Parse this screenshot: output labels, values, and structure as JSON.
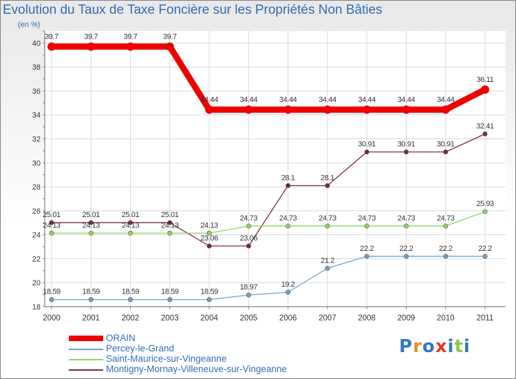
{
  "title": "Evolution du Taux de Taxe Foncière sur les Propriétés Non Bâties",
  "unit": "(en %)",
  "logo": "Proxiti",
  "chart_data": {
    "type": "line",
    "title": "Evolution du Taux de Taxe Foncière sur les Propriétés Non Bâties",
    "ylabel": "(en %)",
    "xlabel": "",
    "ylim": [
      18,
      41
    ],
    "y_ticks": [
      18,
      20,
      22,
      24,
      26,
      28,
      30,
      32,
      34,
      36,
      38,
      40
    ],
    "categories": [
      "2000",
      "2001",
      "2002",
      "2003",
      "2004",
      "2005",
      "2006",
      "2007",
      "2008",
      "2009",
      "2010",
      "2011"
    ],
    "series": [
      {
        "name": "ORAIN",
        "color": "#ee0000",
        "values": [
          39.7,
          39.7,
          39.7,
          39.7,
          34.44,
          34.44,
          34.44,
          34.44,
          34.44,
          34.44,
          34.44,
          36.11
        ],
        "labels": [
          "39.7",
          "39.7",
          "39.7",
          "39.7",
          "34.44",
          "34.44",
          "34.44",
          "34.44",
          "34.44",
          "34.44",
          "34.44",
          "36.11"
        ]
      },
      {
        "name": "Percey-le-Grand",
        "color": "#6ea0cc",
        "values": [
          18.59,
          18.59,
          18.59,
          18.59,
          18.59,
          18.97,
          19.2,
          21.2,
          22.2,
          22.2,
          22.2,
          22.2
        ],
        "labels": [
          "18.59",
          "18.59",
          "18.59",
          "18.59",
          "18.59",
          "18.97",
          "19.2",
          "21.2",
          "22.2",
          "22.2",
          "22.2",
          "22.2"
        ]
      },
      {
        "name": "Saint-Maurice-sur-Vingeanne",
        "color": "#8ed45a",
        "values": [
          24.13,
          24.13,
          24.13,
          24.13,
          24.13,
          24.73,
          24.73,
          24.73,
          24.73,
          24.73,
          24.73,
          25.93
        ],
        "labels": [
          "24.13",
          "24.13",
          "24.13",
          "24.13",
          "24.13",
          "24.73",
          "24.73",
          "24.73",
          "24.73",
          "24.73",
          "24.73",
          "25.93"
        ]
      },
      {
        "name": "Montigny-Mornay-Villeneuve-sur-Vingeanne",
        "color": "#7a2a30",
        "values": [
          25.01,
          25.01,
          25.01,
          25.01,
          23.06,
          23.06,
          28.1,
          28.1,
          30.91,
          30.91,
          30.91,
          32.41
        ],
        "labels": [
          "25.01",
          "25.01",
          "25.01",
          "25.01",
          "23.06",
          "23.06",
          "28.1",
          "28.1",
          "30.91",
          "30.91",
          "30.91",
          "32.41"
        ]
      }
    ]
  }
}
